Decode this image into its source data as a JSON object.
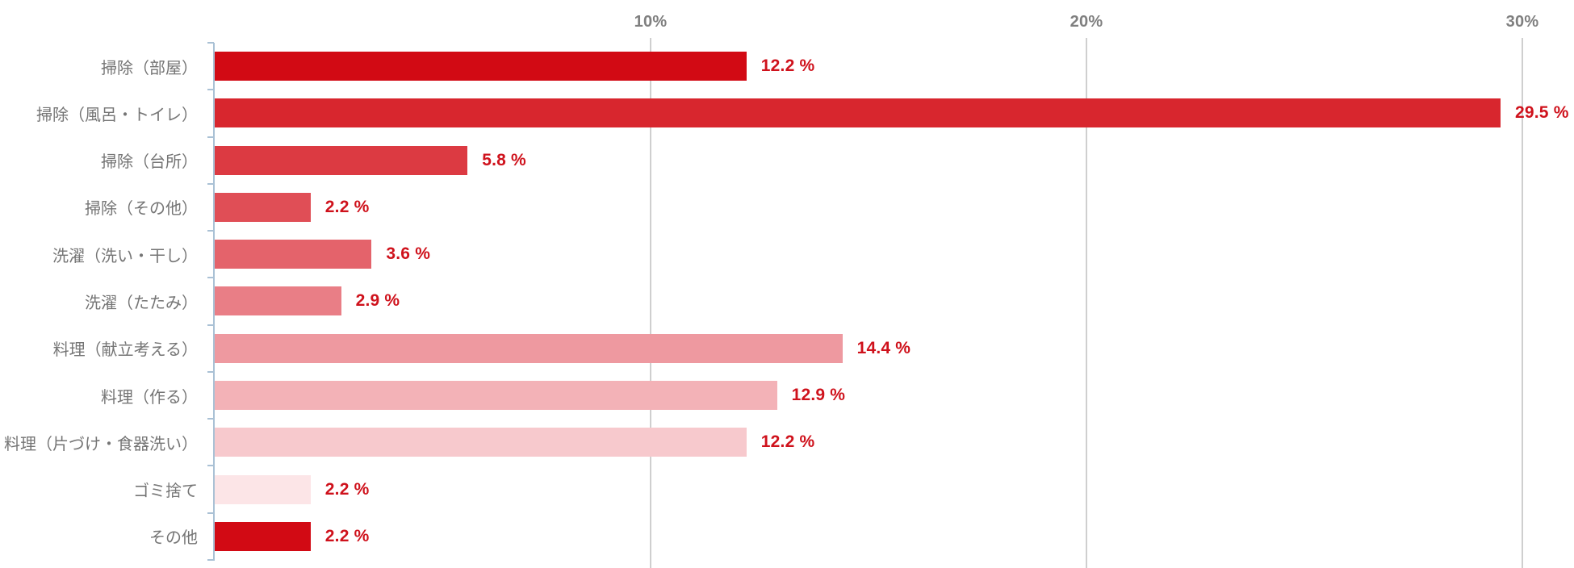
{
  "chart_data": {
    "type": "bar",
    "orientation": "horizontal",
    "title": "",
    "xlabel": "",
    "ylabel": "",
    "categories": [
      "掃除（部屋）",
      "掃除（風呂・トイレ）",
      "掃除（台所）",
      "掃除（その他）",
      "洗濯（洗い・干し）",
      "洗濯（たたみ）",
      "料理（献立考える）",
      "料理（作る）",
      "料理（片づけ・食器洗い）",
      "ゴミ捨て",
      "その他"
    ],
    "values": [
      12.2,
      29.5,
      5.8,
      2.2,
      3.6,
      2.9,
      14.4,
      12.9,
      12.2,
      2.2,
      2.2
    ],
    "value_labels": [
      "12.2 %",
      "29.5 %",
      "5.8 %",
      "2.2 %",
      "3.6 %",
      "2.9 %",
      "14.4 %",
      "12.9 %",
      "12.2 %",
      "2.2 %",
      "2.2 %"
    ],
    "unit": "%",
    "xlim": [
      0,
      31.2
    ],
    "xticks": [
      {
        "value": 10,
        "label": "10%"
      },
      {
        "value": 20,
        "label": "20%"
      },
      {
        "value": 30,
        "label": "30%"
      }
    ],
    "grid": "vertical-only",
    "legend": "none",
    "bar_colors": [
      "#d20a14",
      "#d8262e",
      "#dc3a42",
      "#e04e56",
      "#e4636b",
      "#e97e86",
      "#ee99a0",
      "#f3b2b7",
      "#f7c9cd",
      "#fce5e7",
      "#d20a14"
    ],
    "value_label_color": "#cf121c",
    "tick_label_color": "#7f7f7f",
    "category_label_color": "#757575",
    "gridline_color": "#cfcfcf",
    "axis_line_color": "#aac1d5"
  }
}
